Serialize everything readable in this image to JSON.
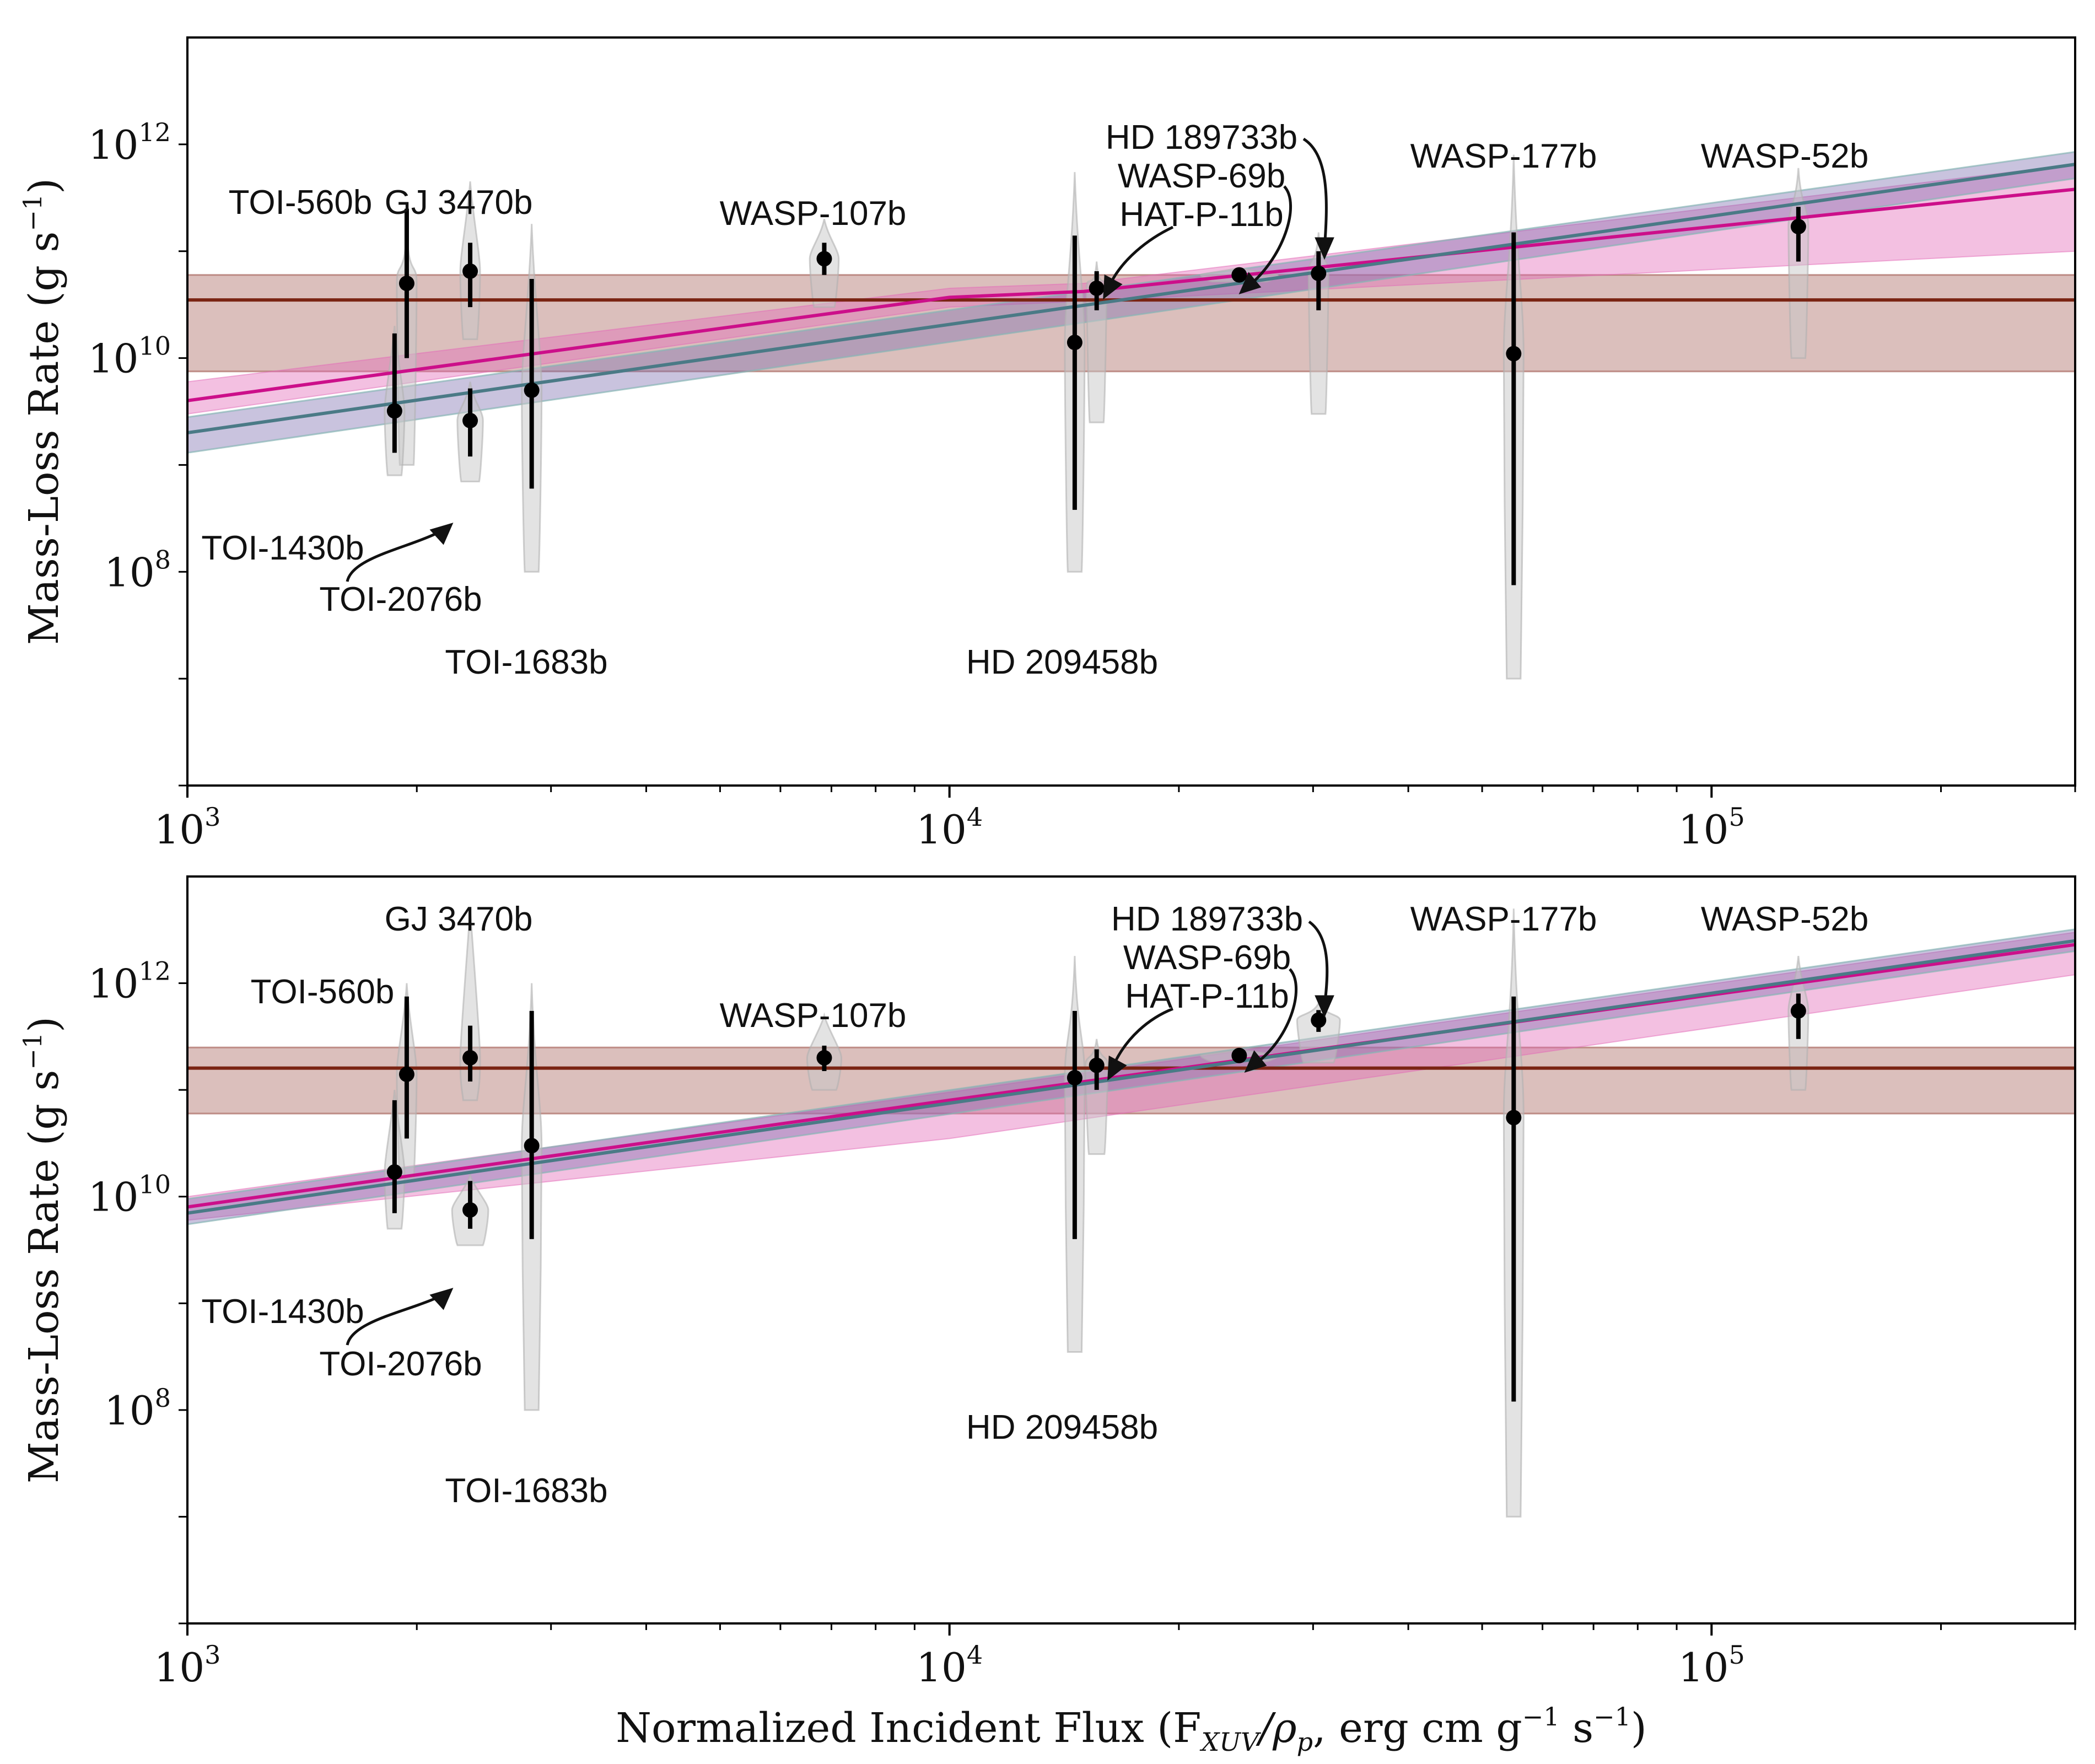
{
  "chart_data": [
    {
      "type": "scatter",
      "panel": "top",
      "xscale": "log",
      "yscale": "log",
      "xlim": [
        1000,
        300000
      ],
      "ylim": [
        1000000,
        10000000000000
      ],
      "ylabel": "Mass-Loss Rate (g s",
      "ylabel_sup": "−1",
      "ylabel_end": ")",
      "xlabel": "",
      "x_ticks": [
        {
          "value": 1000,
          "base": "10",
          "exp": "3"
        },
        {
          "value": 10000,
          "base": "10",
          "exp": "4"
        },
        {
          "value": 100000,
          "base": "10",
          "exp": "5"
        }
      ],
      "y_ticks": [
        {
          "value": 100000000,
          "base": "10",
          "exp": "8"
        },
        {
          "value": 10000000000,
          "base": "10",
          "exp": "10"
        },
        {
          "value": 1000000000000,
          "base": "10",
          "exp": "12"
        }
      ],
      "constant_fit": {
        "value": 35000000000,
        "lo": 7500000000,
        "hi": 60000000000,
        "color": "#7a2413",
        "band_color": "#a0584f"
      },
      "powerlaw_fit_teal": {
        "x": [
          1000,
          300000
        ],
        "y": [
          2000000000,
          650000000000
        ],
        "y_lo": [
          1300000000,
          480000000000
        ],
        "y_hi": [
          2800000000,
          850000000000
        ],
        "color": "#4a7a86",
        "band_color": "#7f6fb0"
      },
      "powerlaw_fit_magenta": {
        "x": [
          1000,
          10000,
          15000,
          300000
        ],
        "y": [
          4000000000,
          37000000000,
          42000000000,
          380000000000
        ],
        "y_lo": [
          3000000000,
          30000000000,
          34000000000,
          100000000000
        ],
        "y_hi": [
          6000000000,
          45000000000,
          50000000000,
          650000000000
        ],
        "color": "#cc0f8a",
        "band_color": "#e36ab8"
      },
      "points": [
        {
          "name": "TOI-560b",
          "x": 1940,
          "y": 50000000000,
          "err_lo": 10000000000,
          "err_hi": 250000000000,
          "violin_lo": 1000000000,
          "violin_hi": 150000000000
        },
        {
          "name": "TOI-1430b",
          "x": 1870,
          "y": 3200000000,
          "err_lo": 1300000000,
          "err_hi": 17000000000,
          "violin_lo": 800000000,
          "violin_hi": 20000000000
        },
        {
          "name": "GJ 3470b",
          "x": 2350,
          "y": 65000000000,
          "err_lo": 30000000000,
          "err_hi": 120000000000,
          "violin_lo": 15000000000,
          "violin_hi": 450000000000
        },
        {
          "name": "TOI-2076b",
          "x": 2350,
          "y": 2600000000,
          "err_lo": 1200000000,
          "err_hi": 5200000000,
          "violin_lo": 700000000,
          "violin_hi": 6000000000
        },
        {
          "name": "TOI-1683b",
          "x": 2830,
          "y": 5000000000,
          "err_lo": 600000000,
          "err_hi": 55000000000,
          "violin_lo": 100000000,
          "violin_hi": 180000000000
        },
        {
          "name": "WASP-107b",
          "x": 6850,
          "y": 85000000000,
          "err_lo": 60000000000,
          "err_hi": 120000000000,
          "violin_lo": 30000000000,
          "violin_hi": 200000000000
        },
        {
          "name": "HD 209458b",
          "x": 14600,
          "y": 14000000000,
          "err_lo": 380000000,
          "err_hi": 140000000000,
          "violin_lo": 100000000,
          "violin_hi": 550000000000
        },
        {
          "name": "HAT-P-11b",
          "x": 15600,
          "y": 45000000000,
          "err_lo": 28000000000,
          "err_hi": 65000000000,
          "violin_lo": 2500000000,
          "violin_hi": 80000000000
        },
        {
          "name": "WASP-69b",
          "x": 24000,
          "y": 60000000000,
          "err_lo": 55000000000,
          "err_hi": 66000000000,
          "violin_lo": 52000000000,
          "violin_hi": 70000000000
        },
        {
          "name": "HD 189733b",
          "x": 30500,
          "y": 62000000000,
          "err_lo": 28000000000,
          "err_hi": 100000000000,
          "violin_lo": 3000000000,
          "violin_hi": 150000000000
        },
        {
          "name": "WASP-177b",
          "x": 55000,
          "y": 11000000000,
          "err_lo": 75000000,
          "err_hi": 150000000000,
          "violin_lo": 10000000,
          "violin_hi": 800000000000
        },
        {
          "name": "WASP-52b",
          "x": 130000,
          "y": 170000000000,
          "err_lo": 80000000000,
          "err_hi": 260000000000,
          "violin_lo": 10000000000,
          "violin_hi": 600000000000
        }
      ]
    },
    {
      "type": "scatter",
      "panel": "bottom",
      "xscale": "log",
      "yscale": "log",
      "xlim": [
        1000,
        300000
      ],
      "ylim": [
        1000000,
        10000000000000
      ],
      "ylabel": "Mass-Loss Rate (g s",
      "ylabel_sup": "−1",
      "ylabel_end": ")",
      "xlabel": "Normalized Incident Flux (F",
      "xlabel_sub": "XUV",
      "xlabel_mid": "/ρ",
      "xlabel_sub2": "p",
      "xlabel_rest": ", erg cm g",
      "xlabel_sup": "−1",
      "xlabel_rest2": " s",
      "xlabel_sup2": "−1",
      "xlabel_end": ")",
      "x_ticks": [
        {
          "value": 1000,
          "base": "10",
          "exp": "3"
        },
        {
          "value": 10000,
          "base": "10",
          "exp": "4"
        },
        {
          "value": 100000,
          "base": "10",
          "exp": "5"
        }
      ],
      "y_ticks": [
        {
          "value": 100000000,
          "base": "10",
          "exp": "8"
        },
        {
          "value": 10000000000,
          "base": "10",
          "exp": "10"
        },
        {
          "value": 1000000000000,
          "base": "10",
          "exp": "12"
        }
      ],
      "constant_fit": {
        "value": 160000000000,
        "lo": 60000000000,
        "hi": 250000000000,
        "color": "#7a2413",
        "band_color": "#a0584f"
      },
      "powerlaw_fit_teal": {
        "x": [
          1000,
          300000
        ],
        "y": [
          7000000000,
          2500000000000
        ],
        "y_lo": [
          5500000000,
          2000000000000
        ],
        "y_hi": [
          9500000000,
          3200000000000
        ],
        "color": "#4a7a86",
        "band_color": "#7f6fb0"
      },
      "powerlaw_fit_magenta": {
        "x": [
          1000,
          10000,
          300000
        ],
        "y": [
          8000000000,
          80000000000,
          2300000000000
        ],
        "y_lo": [
          6000000000,
          35000000000,
          1200000000000
        ],
        "y_hi": [
          10000000000,
          95000000000,
          3000000000000
        ],
        "color": "#cc0f8a",
        "band_color": "#e36ab8"
      },
      "points": [
        {
          "name": "TOI-560b",
          "x": 1940,
          "y": 140000000000,
          "err_lo": 35000000000,
          "err_hi": 750000000000,
          "violin_lo": 15000000000,
          "violin_hi": 1000000000000
        },
        {
          "name": "TOI-1430b",
          "x": 1870,
          "y": 17000000000,
          "err_lo": 7000000000,
          "err_hi": 80000000000,
          "violin_lo": 5000000000,
          "violin_hi": 100000000000
        },
        {
          "name": "GJ 3470b",
          "x": 2350,
          "y": 200000000000,
          "err_lo": 120000000000,
          "err_hi": 400000000000,
          "violin_lo": 80000000000,
          "violin_hi": 5000000000000
        },
        {
          "name": "TOI-2076b",
          "x": 2350,
          "y": 7500000000,
          "err_lo": 5000000000,
          "err_hi": 14000000000,
          "violin_lo": 3500000000,
          "violin_hi": 16000000000
        },
        {
          "name": "TOI-1683b",
          "x": 2830,
          "y": 30000000000,
          "err_lo": 4000000000,
          "err_hi": 550000000000,
          "violin_lo": 100000000,
          "violin_hi": 1000000000000
        },
        {
          "name": "WASP-107b",
          "x": 6850,
          "y": 200000000000,
          "err_lo": 150000000000,
          "err_hi": 260000000000,
          "violin_lo": 100000000000,
          "violin_hi": 500000000000
        },
        {
          "name": "HD 209458b",
          "x": 14600,
          "y": 130000000000,
          "err_lo": 4000000000,
          "err_hi": 550000000000,
          "violin_lo": 350000000,
          "violin_hi": 1800000000000
        },
        {
          "name": "HAT-P-11b",
          "x": 15600,
          "y": 170000000000,
          "err_lo": 100000000000,
          "err_hi": 240000000000,
          "violin_lo": 25000000000,
          "violin_hi": 300000000000
        },
        {
          "name": "WASP-69b",
          "x": 24000,
          "y": 210000000000,
          "err_lo": 195000000000,
          "err_hi": 230000000000,
          "violin_lo": 185000000000,
          "violin_hi": 240000000000
        },
        {
          "name": "HD 189733b",
          "x": 30500,
          "y": 450000000000,
          "err_lo": 350000000000,
          "err_hi": 560000000000,
          "violin_lo": 180000000000,
          "violin_hi": 650000000000
        },
        {
          "name": "WASP-177b",
          "x": 55000,
          "y": 55000000000,
          "err_lo": 120000000,
          "err_hi": 750000000000,
          "violin_lo": 10000000,
          "violin_hi": 5000000000000
        },
        {
          "name": "WASP-52b",
          "x": 130000,
          "y": 550000000000,
          "err_lo": 300000000000,
          "err_hi": 800000000000,
          "violin_lo": 100000000000,
          "violin_hi": 1800000000000
        }
      ]
    }
  ]
}
